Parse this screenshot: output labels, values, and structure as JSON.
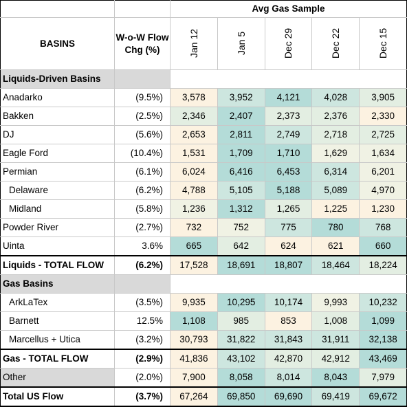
{
  "header": {
    "group_title": "Avg Gas Sample",
    "basins_label": "BASINS",
    "chg_label": "W-o-W Flow Chg (%)",
    "dates": [
      "Jan 12",
      "Jan 5",
      "Dec 29",
      "Dec 22",
      "Dec 15"
    ]
  },
  "sections": {
    "liquids": "Liquids-Driven Basins",
    "gas": "Gas Basins"
  },
  "liquids_rows": [
    {
      "name": "Anadarko",
      "chg": "(9.5%)",
      "values": [
        "3,578",
        "3,952",
        "4,121",
        "4,028",
        "3,905"
      ],
      "heat": [
        "lo",
        "mh",
        "hi",
        "mh",
        "mid"
      ]
    },
    {
      "name": "Bakken",
      "chg": "(2.5%)",
      "values": [
        "2,346",
        "2,407",
        "2,373",
        "2,376",
        "2,330"
      ],
      "heat": [
        "mid",
        "hi",
        "mid",
        "mid",
        "lo"
      ]
    },
    {
      "name": "DJ",
      "chg": "(5.6%)",
      "values": [
        "2,653",
        "2,811",
        "2,749",
        "2,718",
        "2,725"
      ],
      "heat": [
        "lo",
        "hi",
        "mh",
        "mid",
        "mid"
      ]
    },
    {
      "name": "Eagle Ford",
      "chg": "(10.4%)",
      "values": [
        "1,531",
        "1,709",
        "1,710",
        "1,629",
        "1,634"
      ],
      "heat": [
        "lo",
        "hi",
        "hi",
        "ml",
        "ml"
      ]
    },
    {
      "name": "Permian",
      "chg": "(6.1%)",
      "values": [
        "6,024",
        "6,416",
        "6,453",
        "6,314",
        "6,201"
      ],
      "heat": [
        "lo",
        "hi",
        "hi",
        "mh",
        "ml"
      ]
    },
    {
      "name": "Delaware",
      "chg": "(6.2%)",
      "values": [
        "4,788",
        "5,105",
        "5,188",
        "5,089",
        "4,970"
      ],
      "heat": [
        "lo",
        "mh",
        "hi",
        "mh",
        "ml"
      ],
      "sub": true
    },
    {
      "name": "Midland",
      "chg": "(5.8%)",
      "values": [
        "1,236",
        "1,312",
        "1,265",
        "1,225",
        "1,230"
      ],
      "heat": [
        "ml",
        "hi",
        "mid",
        "lo",
        "lo"
      ],
      "sub": true
    },
    {
      "name": "Powder River",
      "chg": "(2.7%)",
      "values": [
        "732",
        "752",
        "775",
        "780",
        "768"
      ],
      "heat": [
        "lo",
        "ml",
        "mh",
        "hi",
        "mh"
      ]
    },
    {
      "name": "Uinta",
      "chg": "3.6%",
      "values": [
        "665",
        "642",
        "624",
        "621",
        "660"
      ],
      "heat": [
        "hi",
        "mid",
        "lo",
        "lo",
        "hi"
      ]
    }
  ],
  "liquids_total": {
    "name": "Liquids - TOTAL FLOW",
    "chg": "(6.2%)",
    "values": [
      "17,528",
      "18,691",
      "18,807",
      "18,464",
      "18,224"
    ],
    "heat": [
      "lo",
      "hi",
      "hi",
      "mh",
      "mid"
    ]
  },
  "gas_rows": [
    {
      "name": "ArkLaTex",
      "chg": "(3.5%)",
      "values": [
        "9,935",
        "10,295",
        "10,174",
        "9,993",
        "10,232"
      ],
      "heat": [
        "lo",
        "hi",
        "mh",
        "ml",
        "mh"
      ],
      "sub": true
    },
    {
      "name": "Barnett",
      "chg": "12.5%",
      "values": [
        "1,108",
        "985",
        "853",
        "1,008",
        "1,099"
      ],
      "heat": [
        "hi",
        "mid",
        "lo",
        "mid",
        "hi"
      ],
      "sub": true
    },
    {
      "name": "Marcellus + Utica",
      "chg": "(3.2%)",
      "values": [
        "30,793",
        "31,822",
        "31,843",
        "31,911",
        "32,138"
      ],
      "heat": [
        "lo",
        "mh",
        "mh",
        "mh",
        "hi"
      ],
      "sub": true
    }
  ],
  "gas_total": {
    "name": "Gas - TOTAL FLOW",
    "chg": "(2.9%)",
    "values": [
      "41,836",
      "43,102",
      "42,870",
      "42,912",
      "43,469"
    ],
    "heat": [
      "lo",
      "mh",
      "mid",
      "mid",
      "hi"
    ]
  },
  "other": {
    "name": "Other",
    "chg": "(2.0%)",
    "values": [
      "7,900",
      "8,058",
      "8,014",
      "8,043",
      "7,979"
    ],
    "heat": [
      "lo",
      "hi",
      "mh",
      "hi",
      "mid"
    ]
  },
  "us_total": {
    "name": "Total US Flow",
    "chg": "(3.7%)",
    "values": [
      "67,264",
      "69,850",
      "69,690",
      "69,419",
      "69,672"
    ],
    "heat": [
      "lo",
      "hi",
      "hi",
      "mh",
      "hi"
    ]
  }
}
